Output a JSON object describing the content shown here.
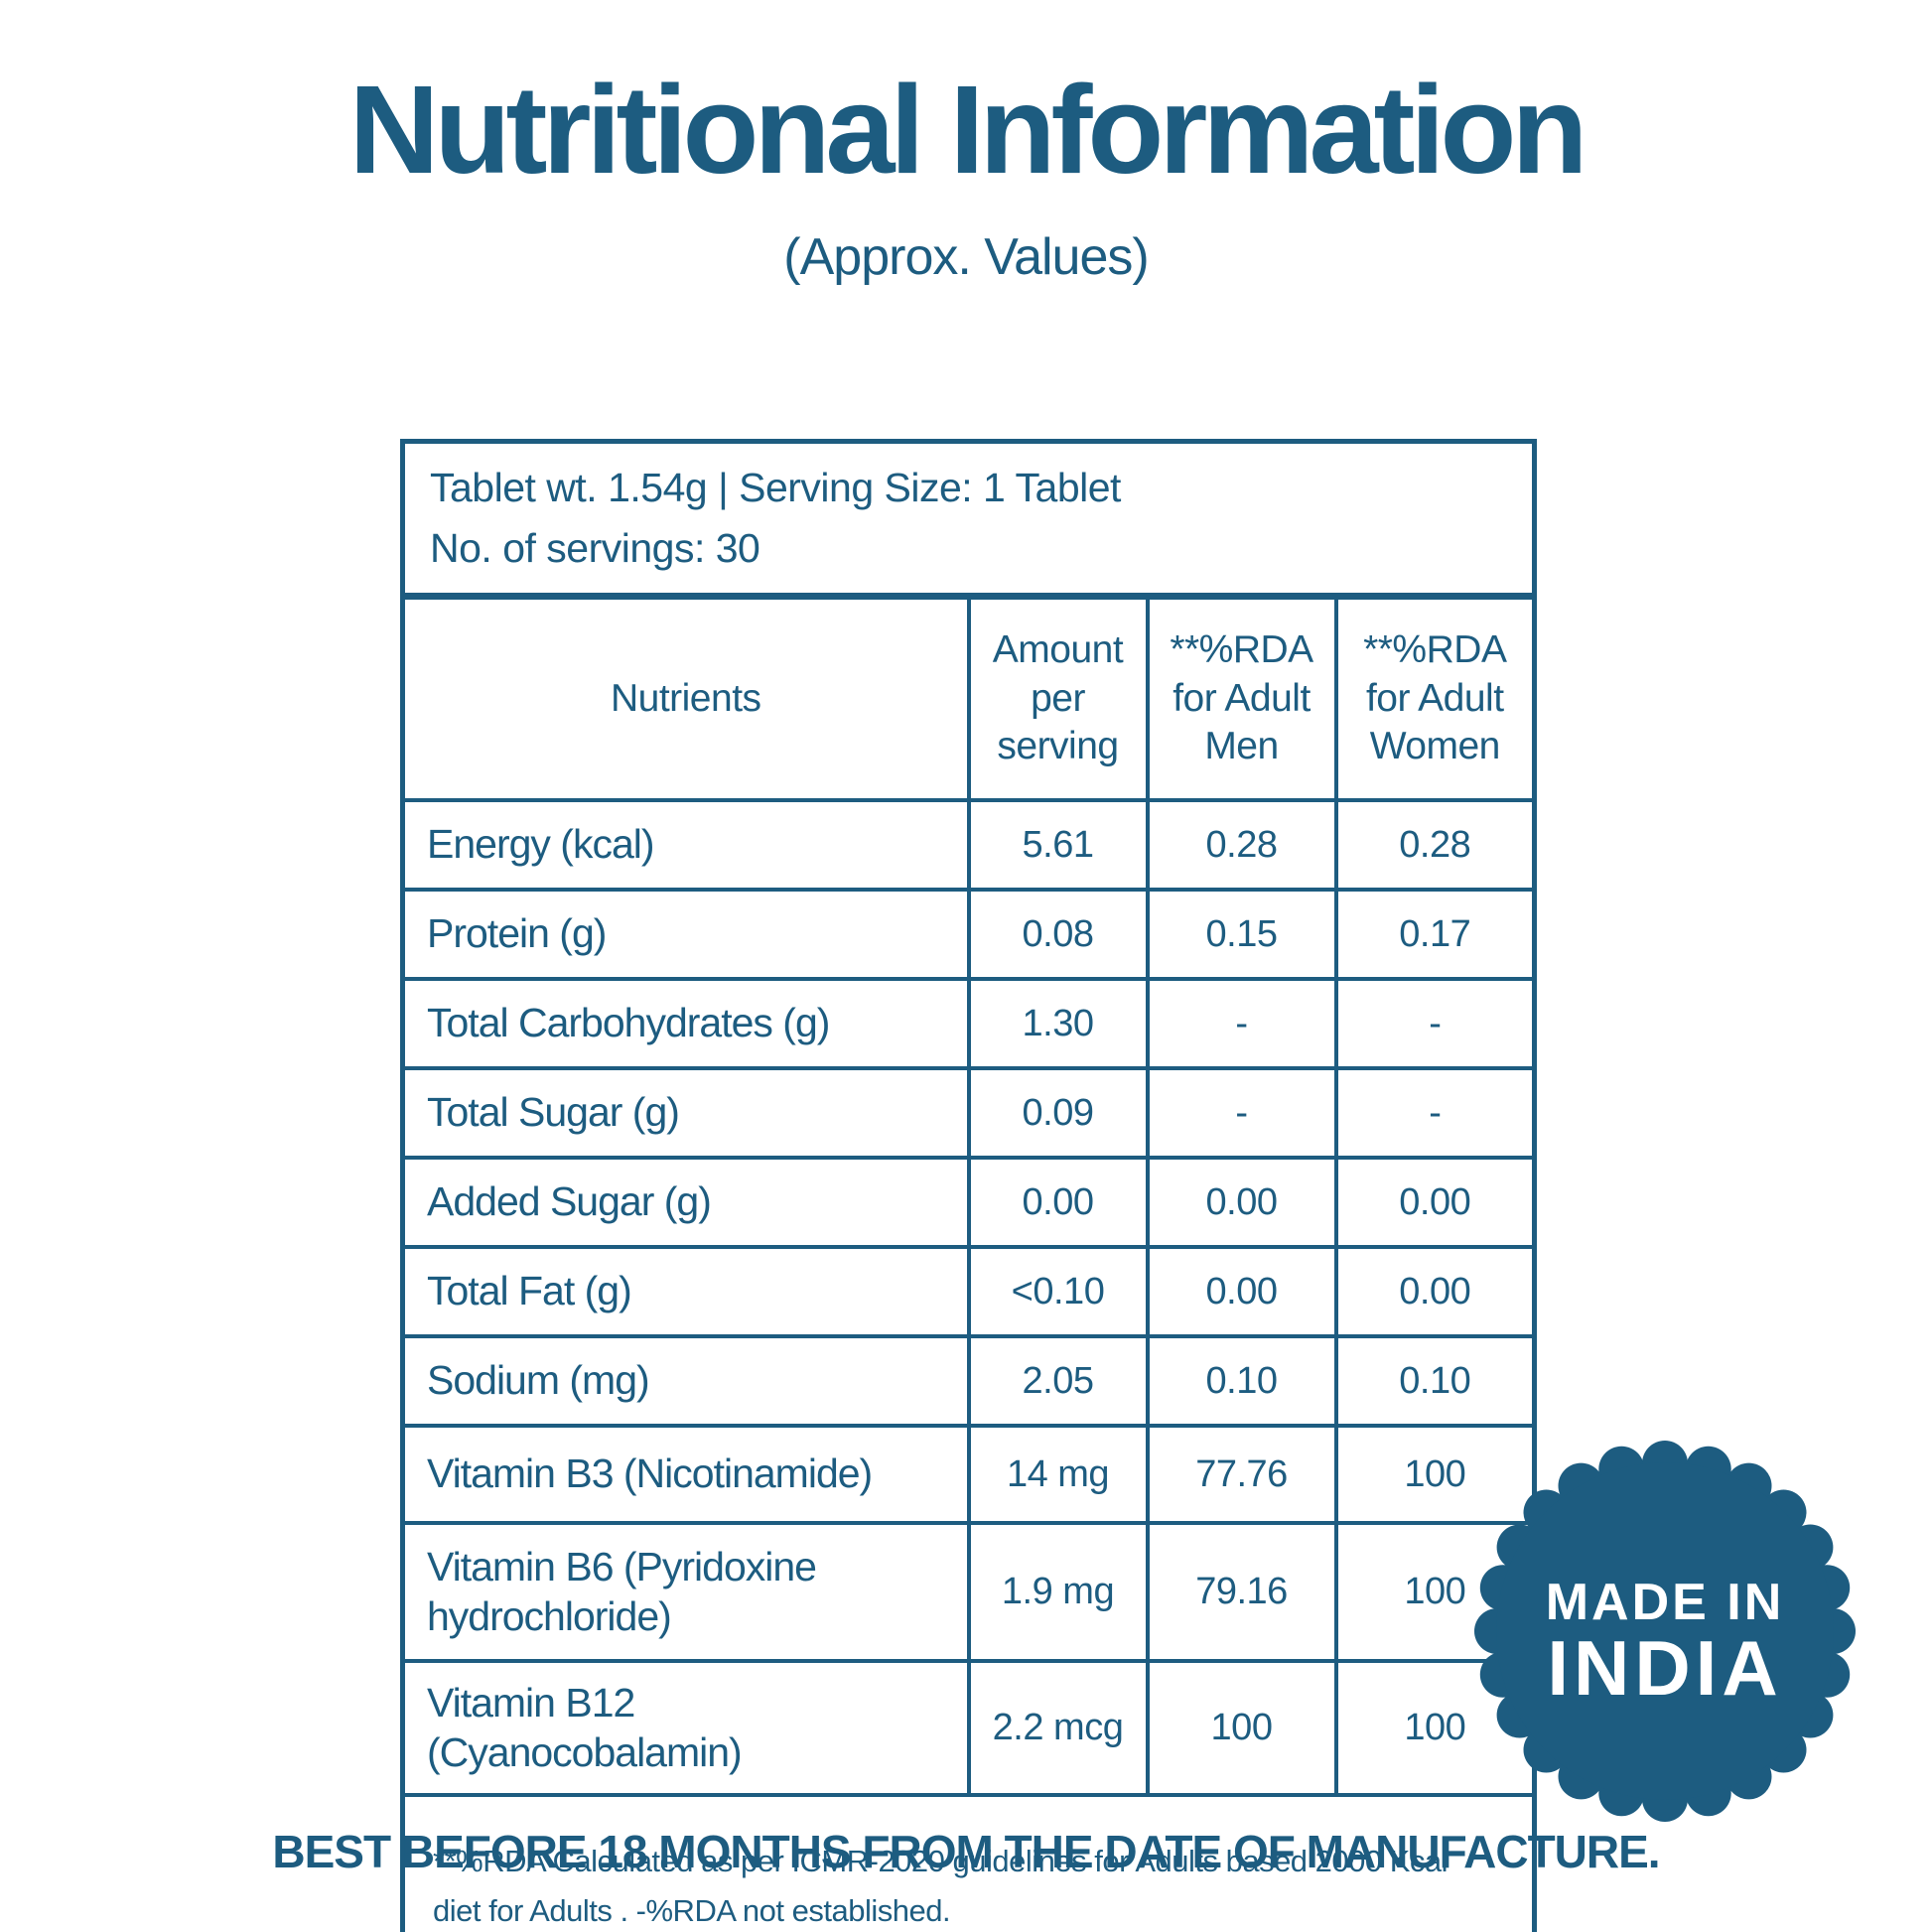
{
  "colors": {
    "primary": "#1d5c80",
    "badge": "#1d5c80",
    "text_on_badge": "#ffffff",
    "background": "#ffffff"
  },
  "header": {
    "title": "Nutritional Information",
    "subtitle": "(Approx. Values)"
  },
  "table": {
    "info_line1": "Tablet wt. 1.54g | Serving Size: 1 Tablet",
    "info_line2": "No. of servings: 30",
    "columns": {
      "nutrients": "Nutrients",
      "amount": "Amount per serving",
      "rda_men": "**%RDA for Adult Men",
      "rda_women": "**%RDA for Adult Women"
    },
    "rows": [
      {
        "nutrient": "Energy (kcal)",
        "amount": "5.61",
        "rda_men": "0.28",
        "rda_women": "0.28"
      },
      {
        "nutrient": "Protein (g)",
        "amount": "0.08",
        "rda_men": "0.15",
        "rda_women": "0.17"
      },
      {
        "nutrient": "Total Carbohydrates (g)",
        "amount": "1.30",
        "rda_men": "-",
        "rda_women": "-"
      },
      {
        "nutrient": "Total Sugar (g)",
        "amount": "0.09",
        "rda_men": "-",
        "rda_women": "-"
      },
      {
        "nutrient": "Added Sugar (g)",
        "amount": "0.00",
        "rda_men": "0.00",
        "rda_women": "0.00"
      },
      {
        "nutrient": "Total Fat (g)",
        "amount": "<0.10",
        "rda_men": "0.00",
        "rda_women": "0.00"
      },
      {
        "nutrient": "Sodium (mg)",
        "amount": "2.05",
        "rda_men": "0.10",
        "rda_women": "0.10"
      },
      {
        "nutrient": "Vitamin B3 (Nicotinamide)",
        "amount": "14 mg",
        "rda_men": "77.76",
        "rda_women": "100"
      },
      {
        "nutrient": "Vitamin B6 (Pyridoxine hydrochloride)",
        "amount": "1.9 mg",
        "rda_men": "79.16",
        "rda_women": "100"
      },
      {
        "nutrient": "Vitamin B12 (Cyanocobalamin)",
        "amount": "2.2 mcg",
        "rda_men": "100",
        "rda_women": "100"
      }
    ],
    "footnote": "**%RDA Calculated as per ICMR-2020 guidelines for Adults based 2000 Kcal diet for Adults . -%RDA not established."
  },
  "badge": {
    "line1": "MADE IN",
    "line2": "INDIA"
  },
  "footer": {
    "best_before": "BEST BEFORE 18 MONTHS FROM THE DATE OF MANUFACTURE."
  }
}
